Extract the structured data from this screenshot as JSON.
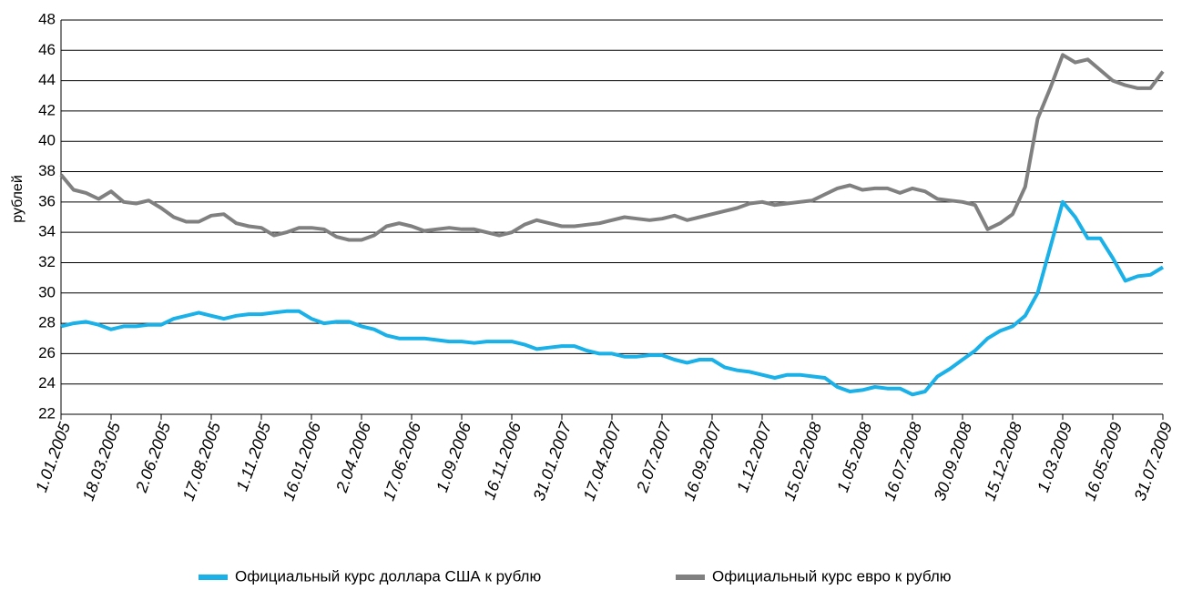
{
  "chart_data": {
    "type": "line",
    "y_label": "рублей",
    "categories": [
      "1.01.2005",
      null,
      null,
      null,
      "18.03.2005",
      null,
      null,
      null,
      "2.06.2005",
      null,
      null,
      null,
      "17.08.2005",
      null,
      null,
      null,
      "1.11.2005",
      null,
      null,
      null,
      "16.01.2006",
      null,
      null,
      null,
      "2.04.2006",
      null,
      null,
      null,
      "17.06.2006",
      null,
      null,
      null,
      "1.09.2006",
      null,
      null,
      null,
      "16.11.2006",
      null,
      null,
      null,
      "31.01.2007",
      null,
      null,
      null,
      "17.04.2007",
      null,
      null,
      null,
      "2.07.2007",
      null,
      null,
      null,
      "16.09.2007",
      null,
      null,
      null,
      "1.12.2007",
      null,
      null,
      null,
      "15.02.2008",
      null,
      null,
      null,
      "1.05.2008",
      null,
      null,
      null,
      "16.07.2008",
      null,
      null,
      null,
      "30.09.2008",
      null,
      null,
      null,
      "15.12.2008",
      null,
      null,
      null,
      "1.03.2009",
      null,
      null,
      null,
      "16.05.2009",
      null,
      null,
      null,
      "31.07.2009"
    ],
    "series": [
      {
        "name": "Официальный курс доллара США к рублю",
        "color": "#1ab0e8",
        "values": [
          27.8,
          28.0,
          28.1,
          27.9,
          27.6,
          27.8,
          27.8,
          27.9,
          27.9,
          28.3,
          28.5,
          28.7,
          28.5,
          28.3,
          28.5,
          28.6,
          28.6,
          28.7,
          28.8,
          28.8,
          28.3,
          28.0,
          28.1,
          28.1,
          27.8,
          27.6,
          27.2,
          27.0,
          27.0,
          27.0,
          26.9,
          26.8,
          26.8,
          26.7,
          26.8,
          26.8,
          26.8,
          26.6,
          26.3,
          26.4,
          26.5,
          26.5,
          26.2,
          26.0,
          26.0,
          25.8,
          25.8,
          25.9,
          25.9,
          25.6,
          25.4,
          25.6,
          25.6,
          25.1,
          24.9,
          24.8,
          24.6,
          24.4,
          24.6,
          24.6,
          24.5,
          24.4,
          23.8,
          23.5,
          23.6,
          23.8,
          23.7,
          23.7,
          23.3,
          23.5,
          24.5,
          25.0,
          25.6,
          26.2,
          27.0,
          27.5,
          27.8,
          28.5,
          30.0,
          33.0,
          36.0,
          35.0,
          33.6,
          33.6,
          32.3,
          30.8,
          31.1,
          31.2,
          31.7
        ]
      },
      {
        "name": "Официальный курс евро к рублю",
        "color": "#808080",
        "values": [
          37.8,
          36.8,
          36.6,
          36.2,
          36.7,
          36.0,
          35.9,
          36.1,
          35.6,
          35.0,
          34.7,
          34.7,
          35.1,
          35.2,
          34.6,
          34.4,
          34.3,
          33.8,
          34.0,
          34.3,
          34.3,
          34.2,
          33.7,
          33.5,
          33.5,
          33.8,
          34.4,
          34.6,
          34.4,
          34.1,
          34.2,
          34.3,
          34.2,
          34.2,
          34.0,
          33.8,
          34.0,
          34.5,
          34.8,
          34.6,
          34.4,
          34.4,
          34.5,
          34.6,
          34.8,
          35.0,
          34.9,
          34.8,
          34.9,
          35.1,
          34.8,
          35.0,
          35.2,
          35.4,
          35.6,
          35.9,
          36.0,
          35.8,
          35.9,
          36.0,
          36.1,
          36.5,
          36.9,
          37.1,
          36.8,
          36.9,
          36.9,
          36.6,
          36.9,
          36.7,
          36.2,
          36.1,
          36.0,
          35.8,
          34.2,
          34.6,
          35.2,
          37.0,
          41.5,
          43.5,
          45.7,
          45.2,
          45.4,
          44.7,
          44.0,
          43.7,
          43.5,
          43.5,
          44.6
        ]
      }
    ],
    "ylim": [
      22,
      48
    ],
    "yticks": [
      22,
      24,
      26,
      28,
      30,
      32,
      34,
      36,
      38,
      40,
      42,
      44,
      46,
      48
    ],
    "grid": true
  }
}
